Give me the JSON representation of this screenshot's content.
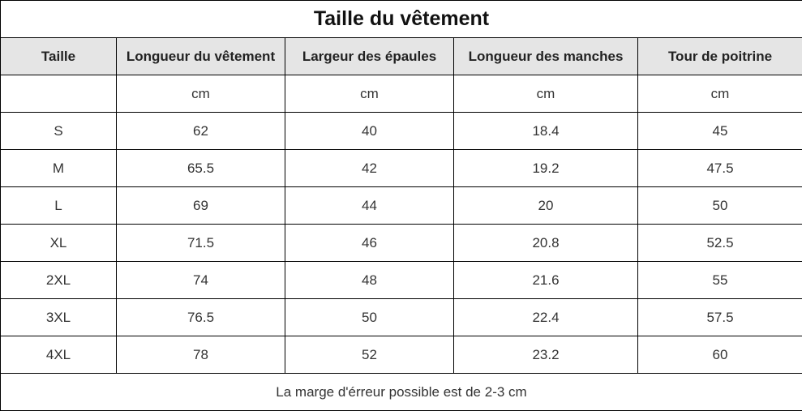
{
  "table": {
    "title": "Taille du vêtement",
    "headers": [
      "Taille",
      "Longueur du vêtement",
      "Largeur des épaules",
      "Longueur des manches",
      "Tour de poitrine"
    ],
    "rows": [
      [
        "",
        "cm",
        "cm",
        "cm",
        "cm"
      ],
      [
        "S",
        "62",
        "40",
        "18.4",
        "45"
      ],
      [
        "M",
        "65.5",
        "42",
        "19.2",
        "47.5"
      ],
      [
        "L",
        "69",
        "44",
        "20",
        "50"
      ],
      [
        "XL",
        "71.5",
        "46",
        "20.8",
        "52.5"
      ],
      [
        "2XL",
        "74",
        "48",
        "21.6",
        "55"
      ],
      [
        "3XL",
        "76.5",
        "50",
        "22.4",
        "57.5"
      ],
      [
        "4XL",
        "78",
        "52",
        "23.2",
        "60"
      ]
    ],
    "note": "La marge d'érreur possible est de 2-3 cm"
  },
  "colors": {
    "header_background": "#e5e5e5",
    "border": "#000000",
    "text": "#333333"
  }
}
